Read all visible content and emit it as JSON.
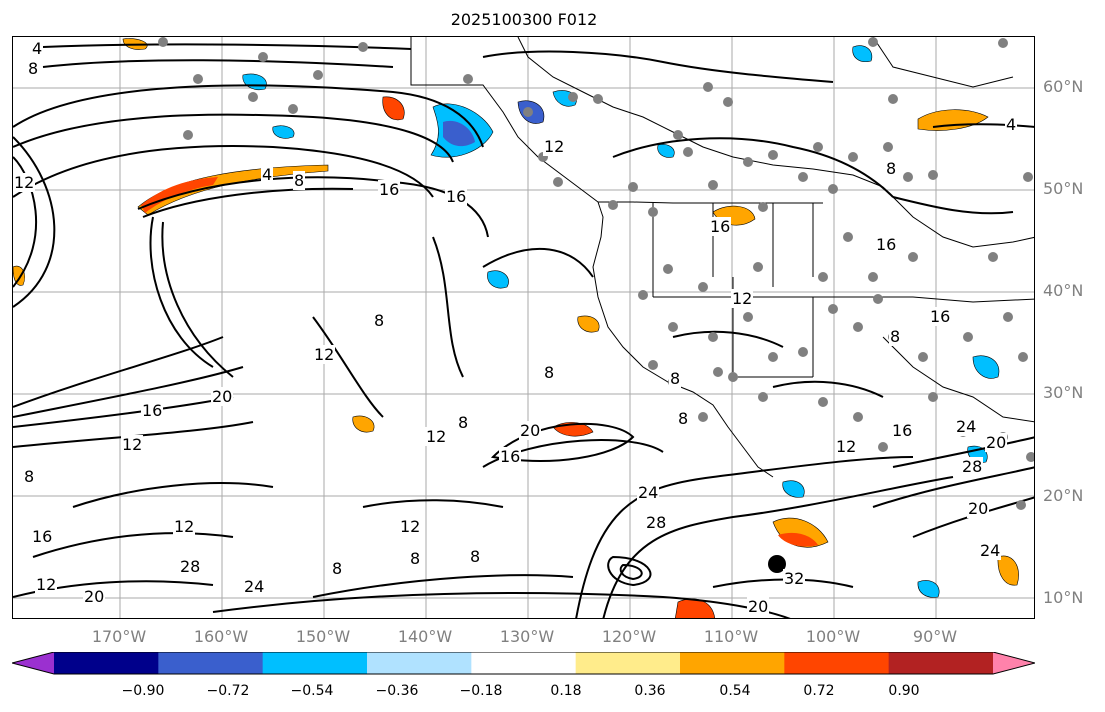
{
  "title": "2025100300 F012",
  "lat_labels": [
    "60°N",
    "50°N",
    "40°N",
    "30°N",
    "20°N",
    "10°N"
  ],
  "lon_labels": [
    "170°W",
    "160°W",
    "150°W",
    "140°W",
    "130°W",
    "120°W",
    "110°W",
    "100°W",
    "90°W"
  ],
  "contour_labels": [
    "4",
    "8",
    "12",
    "16",
    "20",
    "24",
    "28",
    "32"
  ],
  "colorbar": {
    "ticks": [
      "−0.90",
      "−0.72",
      "−0.54",
      "−0.36",
      "−0.18",
      "0.18",
      "0.36",
      "0.54",
      "0.72",
      "0.90"
    ],
    "colors": [
      "#9b30d0",
      "#00008b",
      "#3a5fcd",
      "#00bfff",
      "#b0e2ff",
      "#ffffff",
      "#ffec8b",
      "#ffa500",
      "#ff4500",
      "#b22222",
      "#ff82ab"
    ]
  }
}
